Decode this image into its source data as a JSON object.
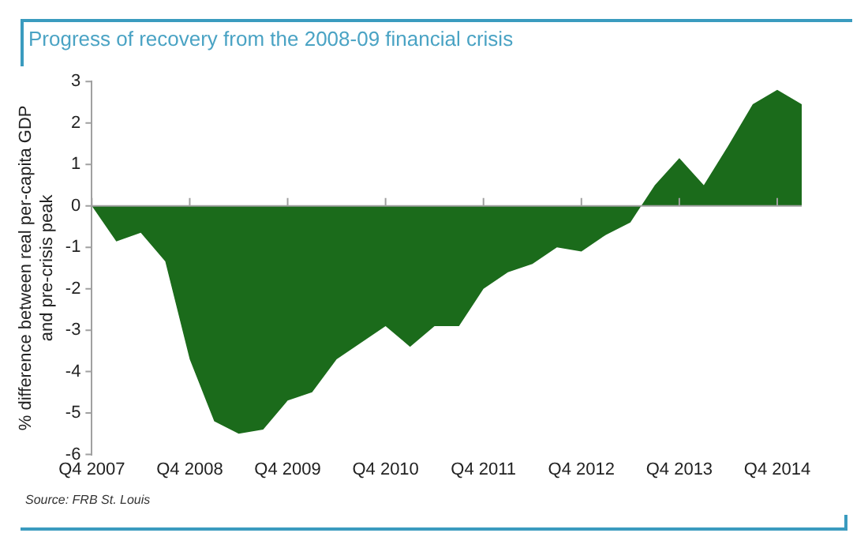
{
  "chart_data": {
    "type": "area",
    "title": "Progress of recovery from the 2008-09 financial crisis",
    "ylabel": "% difference between real per-capita GDP\nand pre-crisis peak",
    "categories": [
      "Q4 2007",
      null,
      null,
      null,
      "Q4 2008",
      null,
      null,
      null,
      "Q4 2009",
      null,
      null,
      null,
      "Q4 2010",
      null,
      null,
      null,
      "Q4 2011",
      null,
      null,
      null,
      "Q4 2012",
      null,
      null,
      null,
      "Q4 2013",
      null,
      null,
      null,
      "Q4 2014",
      null
    ],
    "series": [
      {
        "color": "#1b6b1b",
        "values": [
          0,
          -0.86,
          -0.65,
          -1.34,
          -3.7,
          -5.2,
          -5.5,
          -5.4,
          -4.7,
          -4.5,
          -3.7,
          -3.3,
          -2.9,
          -3.4,
          -2.9,
          -2.9,
          -2.0,
          -1.6,
          -1.4,
          -1.0,
          -1.1,
          -0.7,
          -0.4,
          0.5,
          1.15,
          0.5,
          1.45,
          2.45,
          2.8,
          2.45
        ]
      }
    ],
    "ylim": [
      -6,
      3
    ],
    "yticks": [
      -6,
      -5,
      -4,
      -3,
      -2,
      -1,
      0,
      1,
      2,
      3
    ],
    "legend": false,
    "annotations": [
      "Source: FRB St. Louis"
    ]
  }
}
